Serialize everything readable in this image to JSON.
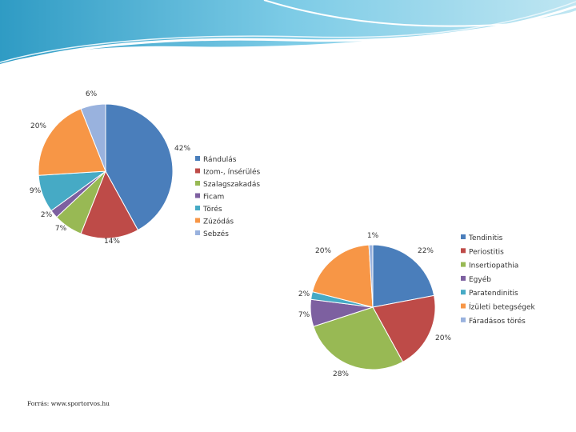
{
  "source_note": "Forrás: www.sportorvos.hu",
  "chart_data": [
    {
      "type": "pie",
      "categories": [
        "Rándulás",
        "Izom-, ínsérülés",
        "Szalagszakadás",
        "Ficam",
        "Törés",
        "Zúzódás",
        "Sebzés"
      ],
      "values": [
        42,
        14,
        7,
        2,
        9,
        20,
        6
      ],
      "value_labels": [
        "42%",
        "14%",
        "7%",
        "2%",
        "9%",
        "20%",
        "6%"
      ],
      "colors": [
        "#4a7ebb",
        "#be4b48",
        "#98b954",
        "#7d60a0",
        "#46aac5",
        "#f79646",
        "#99b2de"
      ],
      "legend_position": "right"
    },
    {
      "type": "pie",
      "categories": [
        "Tendinitis",
        "Periostitis",
        "Insertiopathia",
        "Egyéb",
        "Paratendinitis",
        "Ízületi betegségek",
        "Fáradásos törés"
      ],
      "values": [
        22,
        20,
        28,
        7,
        2,
        20,
        1
      ],
      "value_labels": [
        "22%",
        "20%",
        "28%",
        "7%",
        "2%",
        "20%",
        "1%"
      ],
      "colors": [
        "#4a7ebb",
        "#be4b48",
        "#98b954",
        "#7d60a0",
        "#46aac5",
        "#f79646",
        "#99b2de"
      ],
      "legend_position": "right"
    }
  ]
}
